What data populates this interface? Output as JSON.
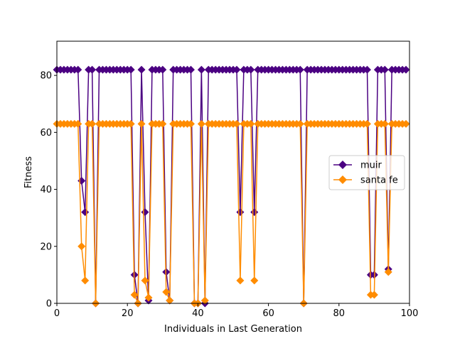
{
  "chart_data": {
    "type": "line",
    "title": "",
    "xlabel": "Individuals in Last Generation",
    "ylabel": "Fitness",
    "xlim": [
      0,
      100
    ],
    "ylim": [
      0,
      92
    ],
    "x_ticks": [
      0,
      20,
      40,
      60,
      80,
      100
    ],
    "y_ticks": [
      0,
      20,
      40,
      60,
      80
    ],
    "grid": false,
    "legend_position": "center-right",
    "x": [
      0,
      1,
      2,
      3,
      4,
      5,
      6,
      7,
      8,
      9,
      10,
      11,
      12,
      13,
      14,
      15,
      16,
      17,
      18,
      19,
      20,
      21,
      22,
      23,
      24,
      25,
      26,
      27,
      28,
      29,
      30,
      31,
      32,
      33,
      34,
      35,
      36,
      37,
      38,
      39,
      40,
      41,
      42,
      43,
      44,
      45,
      46,
      47,
      48,
      49,
      50,
      51,
      52,
      53,
      54,
      55,
      56,
      57,
      58,
      59,
      60,
      61,
      62,
      63,
      64,
      65,
      66,
      67,
      68,
      69,
      70,
      71,
      72,
      73,
      74,
      75,
      76,
      77,
      78,
      79,
      80,
      81,
      82,
      83,
      84,
      85,
      86,
      87,
      88,
      89,
      90,
      91,
      92,
      93,
      94,
      95,
      96,
      97,
      98,
      99
    ],
    "series": [
      {
        "name": "muir",
        "color": "#4b0082",
        "marker": "diamond",
        "values": [
          82,
          82,
          82,
          82,
          82,
          82,
          82,
          43,
          32,
          82,
          82,
          0,
          82,
          82,
          82,
          82,
          82,
          82,
          82,
          82,
          82,
          82,
          10,
          0,
          82,
          32,
          1,
          82,
          82,
          82,
          82,
          11,
          1,
          82,
          82,
          82,
          82,
          82,
          82,
          0,
          0,
          82,
          0,
          82,
          82,
          82,
          82,
          82,
          82,
          82,
          82,
          82,
          32,
          82,
          82,
          82,
          32,
          82,
          82,
          82,
          82,
          82,
          82,
          82,
          82,
          82,
          82,
          82,
          82,
          82,
          0,
          82,
          82,
          82,
          82,
          82,
          82,
          82,
          82,
          82,
          82,
          82,
          82,
          82,
          82,
          82,
          82,
          82,
          82,
          10,
          10,
          82,
          82,
          82,
          12,
          82,
          82,
          82,
          82,
          82
        ]
      },
      {
        "name": "santa fe",
        "color": "#ff8c00",
        "marker": "diamond",
        "values": [
          63,
          63,
          63,
          63,
          63,
          63,
          63,
          20,
          8,
          63,
          63,
          0,
          63,
          63,
          63,
          63,
          63,
          63,
          63,
          63,
          63,
          63,
          3,
          0,
          63,
          8,
          2,
          63,
          63,
          63,
          63,
          4,
          1,
          63,
          63,
          63,
          63,
          63,
          63,
          0,
          0,
          63,
          1,
          63,
          63,
          63,
          63,
          63,
          63,
          63,
          63,
          63,
          8,
          63,
          63,
          63,
          8,
          63,
          63,
          63,
          63,
          63,
          63,
          63,
          63,
          63,
          63,
          63,
          63,
          63,
          0,
          63,
          63,
          63,
          63,
          63,
          63,
          63,
          63,
          63,
          63,
          63,
          63,
          63,
          63,
          63,
          63,
          63,
          63,
          3,
          3,
          63,
          63,
          63,
          11,
          63,
          63,
          63,
          63,
          63
        ]
      }
    ]
  }
}
